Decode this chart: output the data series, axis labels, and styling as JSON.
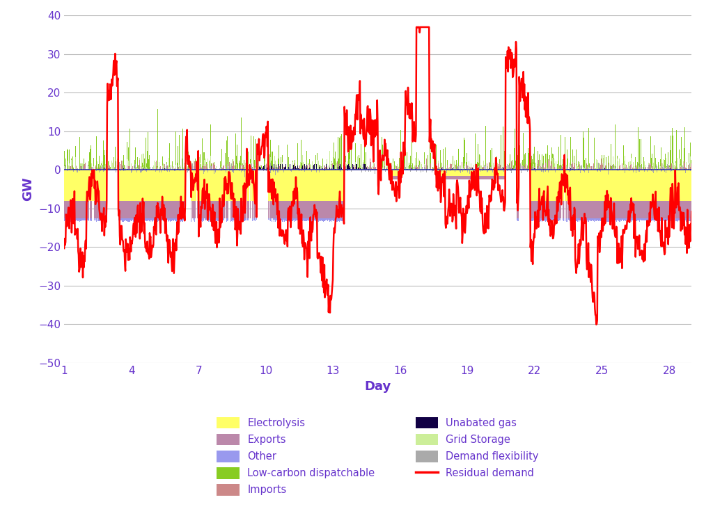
{
  "xlabel": "Day",
  "ylabel": "GW",
  "ylim": [
    -50,
    40
  ],
  "yticks": [
    -50,
    -40,
    -30,
    -20,
    -10,
    0,
    10,
    20,
    30,
    40
  ],
  "xticks": [
    1,
    4,
    7,
    10,
    13,
    16,
    19,
    22,
    25,
    28
  ],
  "xlim": [
    1,
    29
  ],
  "n_days": 28,
  "half_hours_per_day": 48,
  "colors": {
    "electrolysis": "#FFFF66",
    "other": "#9999EE",
    "imports": "#CC8888",
    "grid_storage": "#CCEE99",
    "exports": "#BB88AA",
    "low_carbon": "#88CC22",
    "unabated_gas": "#110044",
    "demand_flex": "#AAAAAA",
    "residual": "#FF0000",
    "zero_line": "#3333AA"
  },
  "legend_labels": {
    "electrolysis": "Electrolysis",
    "other": "Other",
    "imports": "Imports",
    "grid_storage": "Grid Storage",
    "exports": "Exports",
    "low_carbon": "Low-carbon dispatchable",
    "unabated_gas": "Unabated gas",
    "demand_flex": "Demand flexibility",
    "residual": "Residual demand"
  },
  "label_color": "#6633CC",
  "background": "#FFFFFF",
  "grid_color": "#BBBBBB"
}
